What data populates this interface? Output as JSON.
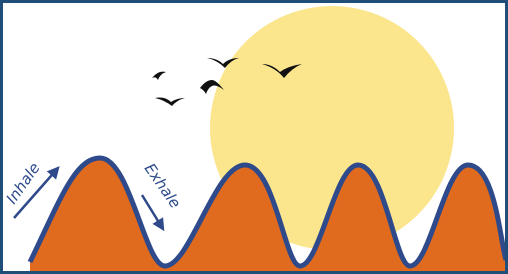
{
  "labels": {
    "inhale": "Inhale",
    "exhale": "Exhale"
  }
}
